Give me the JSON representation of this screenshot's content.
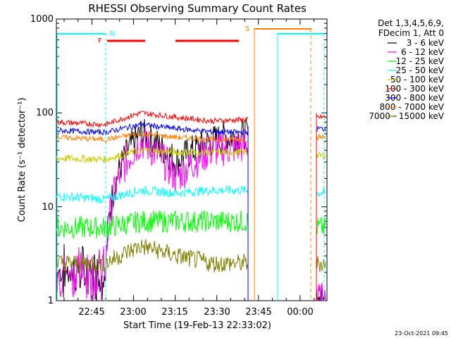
{
  "chart_data": {
    "type": "line",
    "title": "RHESSI Observing Summary Count Rates",
    "xlabel": "Start Time (19-Feb-13 22:33:02)",
    "ylabel": "Count Rate (s⁻¹ detector⁻¹)",
    "ylim": [
      1,
      1000
    ],
    "yscale": "log",
    "y_ticks": [
      "1",
      "10",
      "100",
      "1000"
    ],
    "x_ticks": [
      "22:45",
      "23:00",
      "23:15",
      "23:30",
      "23:45",
      "00:00"
    ],
    "legend_header": [
      "Det 1,3,4,5,6,9,",
      "FDecim 1, Att 0"
    ],
    "footer": "23-Oct-2021 09:45",
    "markers": {
      "N": "N",
      "F": "F",
      "S": "S"
    },
    "series": [
      {
        "name": "3 - 6 keV",
        "color": "#000000",
        "approx_values": [
          2,
          2,
          60,
          30,
          50,
          60,
          1,
          1
        ]
      },
      {
        "name": "6 - 12 keV",
        "color": "#ff00ff",
        "approx_values": [
          2,
          2,
          50,
          20,
          40,
          45,
          1,
          1
        ]
      },
      {
        "name": "12 - 25 keV",
        "color": "#00ff00",
        "approx_values": [
          6,
          6,
          7,
          7,
          7,
          7,
          1,
          6
        ]
      },
      {
        "name": "25 - 50 keV",
        "color": "#00ffff",
        "approx_values": [
          13,
          12,
          15,
          14,
          15,
          15,
          1,
          14
        ]
      },
      {
        "name": "50 - 100 keV",
        "color": "#cccc00",
        "approx_values": [
          33,
          32,
          40,
          38,
          38,
          38,
          1,
          35
        ]
      },
      {
        "name": "100 - 300 keV",
        "color": "#ff0000",
        "approx_values": [
          80,
          75,
          100,
          90,
          82,
          85,
          1,
          90
        ]
      },
      {
        "name": "300 - 800 keV",
        "color": "#0000ff",
        "approx_values": [
          65,
          62,
          75,
          68,
          63,
          62,
          1,
          68
        ]
      },
      {
        "name": "800 - 7000 keV",
        "color": "#ff8000",
        "approx_values": [
          55,
          52,
          60,
          55,
          52,
          52,
          1,
          55
        ]
      },
      {
        "name": "7000 - 15000 keV",
        "color": "#808000",
        "approx_values": [
          2.5,
          2.5,
          3.8,
          3,
          2.5,
          2.5,
          1,
          2.5
        ]
      }
    ]
  }
}
